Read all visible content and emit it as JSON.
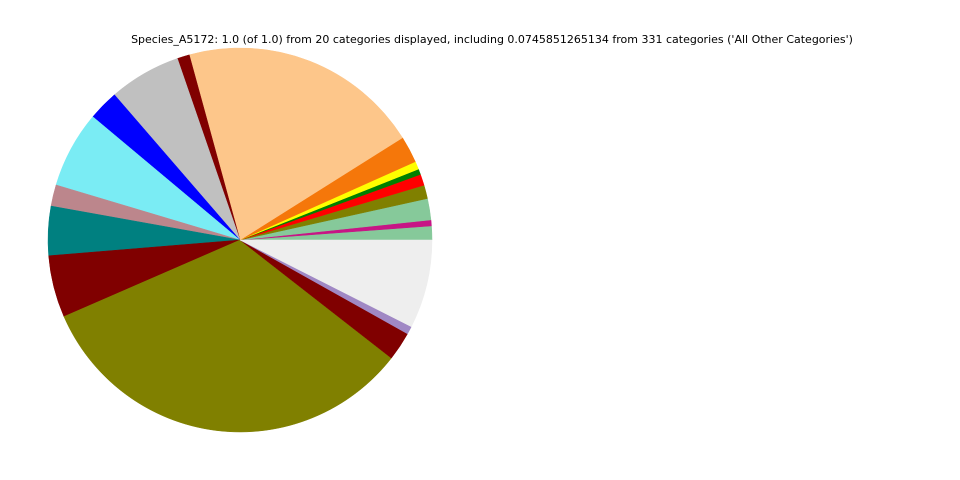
{
  "chart_data": {
    "type": "pie",
    "title": "Species_A5172: 1.0 (of 1.0) from 20 categories displayed, including 0.0745851265134 from 331 categories ('All Other Categories')",
    "values": [
      0.0117,
      0.005,
      0.018,
      0.0114,
      0.0094,
      0.0047,
      0.0067,
      0.0225,
      0.2033,
      0.0103,
      0.0606,
      0.0256,
      0.0647,
      0.018,
      0.0414,
      0.0522,
      0.3294,
      0.0242,
      0.0067,
      0.0745851265134
    ],
    "colors": [
      "#86c99a",
      "#c71585",
      "#86c99a",
      "#808000",
      "#ff0000",
      "#008000",
      "#ffff00",
      "#f5770a",
      "#fdc68a",
      "#800000",
      "#c0c0c0",
      "#0000ff",
      "#7aecf4",
      "#bc868c",
      "#008080",
      "#800000",
      "#808000",
      "#800000",
      "#a088c4",
      "#eeeeee"
    ],
    "start_angle": 0,
    "counterclockwise": true
  }
}
